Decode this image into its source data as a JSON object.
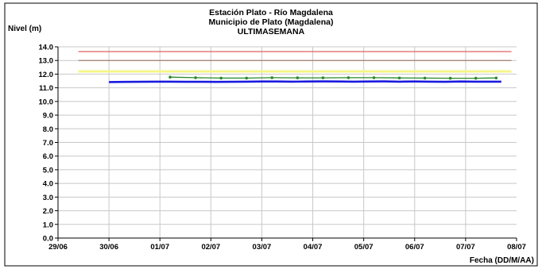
{
  "chart_data": {
    "type": "line",
    "title": [
      "Estación Plato - Río Magdalena",
      "Municipio de Plato (Magdalena)",
      "ULTIMASEMANA"
    ],
    "ylabel": "Nivel (m)",
    "xlabel": "Fecha (DD/M/AA)",
    "x_ticks": [
      "29/06",
      "30/06",
      "01/07",
      "02/07",
      "03/07",
      "04/07",
      "05/07",
      "06/07",
      "07/07",
      "08/07"
    ],
    "x_domain_days": [
      0,
      9
    ],
    "ylim": [
      0.0,
      14.0
    ],
    "y_ticks": [
      "0.0",
      "1.0",
      "2.0",
      "3.0",
      "4.0",
      "5.0",
      "6.0",
      "7.0",
      "8.0",
      "9.0",
      "10.0",
      "11.0",
      "12.0",
      "13.0",
      "14.0"
    ],
    "grid": true,
    "colors": {
      "level": "#1a1adf",
      "forecast": "#2a8a2a",
      "threshold_red": "#e06060",
      "threshold_brown": "#a08070",
      "threshold_yellow": "#f5f58a",
      "grid": "#c8c8c8"
    },
    "thresholds": [
      {
        "value": 13.65,
        "color": "#e06060",
        "x_range": [
          0.4,
          8.9
        ]
      },
      {
        "value": 13.0,
        "color": "#a08070",
        "x_range": [
          0.4,
          8.9
        ]
      },
      {
        "value": 12.2,
        "color": "#f5f58a",
        "x_range": [
          0.4,
          8.9
        ]
      }
    ],
    "series": [
      {
        "color": "#1a1adf",
        "markers": false,
        "points": [
          [
            1.0,
            11.42
          ],
          [
            1.3,
            11.43
          ],
          [
            1.6,
            11.44
          ],
          [
            1.9,
            11.45
          ],
          [
            2.2,
            11.45
          ],
          [
            2.5,
            11.44
          ],
          [
            2.8,
            11.44
          ],
          [
            3.1,
            11.43
          ],
          [
            3.4,
            11.44
          ],
          [
            3.7,
            11.45
          ],
          [
            4.0,
            11.46
          ],
          [
            4.3,
            11.46
          ],
          [
            4.6,
            11.45
          ],
          [
            4.9,
            11.46
          ],
          [
            5.2,
            11.47
          ],
          [
            5.5,
            11.46
          ],
          [
            5.8,
            11.45
          ],
          [
            6.1,
            11.46
          ],
          [
            6.4,
            11.47
          ],
          [
            6.7,
            11.45
          ],
          [
            7.0,
            11.46
          ],
          [
            7.3,
            11.45
          ],
          [
            7.6,
            11.44
          ],
          [
            7.9,
            11.46
          ],
          [
            8.2,
            11.45
          ],
          [
            8.5,
            11.45
          ],
          [
            8.7,
            11.45
          ]
        ]
      },
      {
        "color": "#2a8a2a",
        "markers": true,
        "points": [
          [
            2.2,
            11.78
          ],
          [
            2.7,
            11.74
          ],
          [
            3.2,
            11.71
          ],
          [
            3.7,
            11.71
          ],
          [
            4.2,
            11.74
          ],
          [
            4.7,
            11.73
          ],
          [
            5.2,
            11.73
          ],
          [
            5.7,
            11.74
          ],
          [
            6.2,
            11.74
          ],
          [
            6.7,
            11.72
          ],
          [
            7.2,
            11.71
          ],
          [
            7.7,
            11.7
          ],
          [
            8.2,
            11.7
          ],
          [
            8.6,
            11.72
          ]
        ]
      }
    ]
  }
}
